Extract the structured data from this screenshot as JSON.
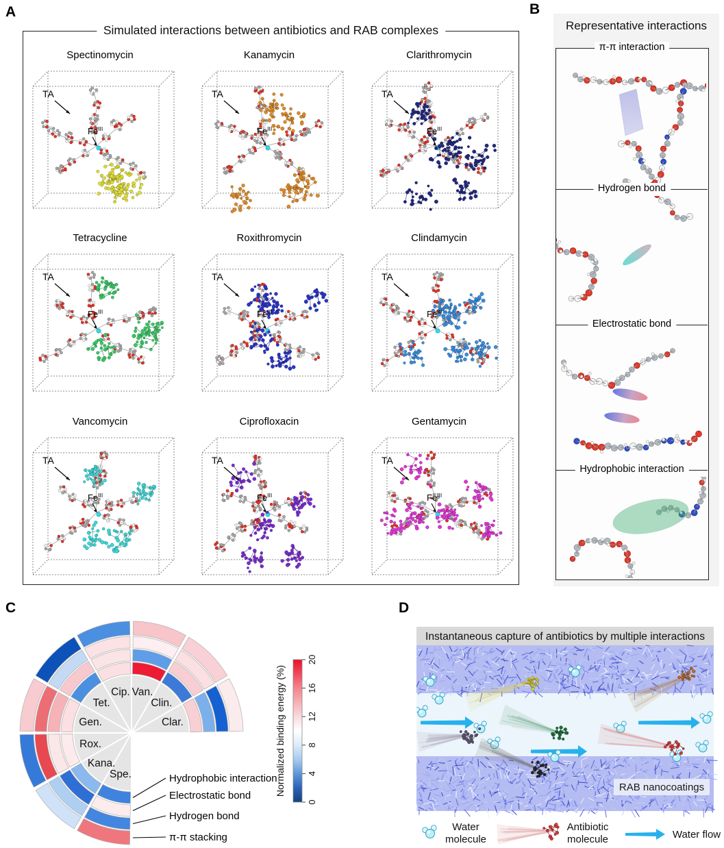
{
  "figure": {
    "panel_a": {
      "label": "A",
      "title": "Simulated interactions between antibiotics and RAB complexes",
      "ta_label": "TA",
      "fe_label": "Fe",
      "fe_superscript": "III",
      "subpanels": [
        {
          "name": "Spectinomycin",
          "color": "#e0de38"
        },
        {
          "name": "Kanamycin",
          "color": "#de8d2b"
        },
        {
          "name": "Clarithromycin",
          "color": "#232a80"
        },
        {
          "name": "Tetracycline",
          "color": "#3bc968"
        },
        {
          "name": "Roxithromycin",
          "color": "#2c35c8"
        },
        {
          "name": "Clindamycin",
          "color": "#3b8ede"
        },
        {
          "name": "Vancomycin",
          "color": "#3fd8d8"
        },
        {
          "name": "Ciprofloxacin",
          "color": "#7a2fd0"
        },
        {
          "name": "Gentamycin",
          "color": "#e039d6"
        }
      ]
    },
    "panel_b": {
      "label": "B",
      "title": "Representative interactions",
      "sections": [
        {
          "name": "π-π interaction",
          "highlight": "purple-slab"
        },
        {
          "name": "Hydrogen bond",
          "highlight": "teal-ellipse"
        },
        {
          "name": "Electrostatic bond",
          "highlight": "red-blue-ellipses"
        },
        {
          "name": "Hydrophobic interaction",
          "highlight": "green-blob"
        }
      ]
    },
    "panel_c": {
      "label": "C",
      "chart_data": {
        "type": "sunburst-heatmap",
        "rings": [
          "Hydrophobic interaction",
          "Electrostatic bond",
          "Hydrogen bond",
          "π-π stacking"
        ],
        "colorbar": {
          "title": "Normalized binding energy (%)",
          "ticks": [
            0,
            4,
            8,
            12,
            16,
            20
          ],
          "min": 0,
          "max": 20,
          "top_color": "#ea1128",
          "mid_color": "#ffffff",
          "bottom_color": "#14407f"
        },
        "wedges": [
          {
            "label": "Spe.",
            "start": -180,
            "end": -150,
            "values": [
              8,
              13,
              8,
              18
            ],
            "colors": [
              "#3f83de",
              "#fcecee",
              "#4286df",
              "#f0767e"
            ]
          },
          {
            "label": "Kana.",
            "start": -150,
            "end": -120,
            "values": [
              9,
              6,
              10,
              11
            ],
            "colors": [
              "#8ab9ee",
              "#2e6fd6",
              "#aecff2",
              "#cfe2f7"
            ]
          },
          {
            "label": "Rox.",
            "start": -120,
            "end": -90,
            "values": [
              13,
              13,
              19,
              7
            ],
            "colors": [
              "#fceaec",
              "#fbe6e8",
              "#e84850",
              "#3579d9"
            ]
          },
          {
            "label": "Gen.",
            "start": -90,
            "end": -60,
            "values": [
              13,
              15,
              17,
              14
            ],
            "colors": [
              "#fbdfe2",
              "#f5b3b8",
              "#ed6d75",
              "#f8cbd0"
            ]
          },
          {
            "label": "Tet.",
            "start": -60,
            "end": -30,
            "values": [
              9,
              14,
              10,
              3
            ],
            "colors": [
              "#4a8fe0",
              "#f7c9ce",
              "#c3d9f4",
              "#0d52b8"
            ]
          },
          {
            "label": "Cip.",
            "start": -30,
            "end": 0,
            "values": [
              13,
              13,
              13,
              8
            ],
            "colors": [
              "#fbe0e3",
              "#fbe4e6",
              "#fae2e5",
              "#4a8fe0"
            ]
          },
          {
            "label": "Van.",
            "start": 0,
            "end": 30,
            "values": [
              20,
              9,
              13,
              15
            ],
            "colors": [
              "#ed1b34",
              "#5f9de8",
              "#fdeff1",
              "#f7c5ca"
            ]
          },
          {
            "label": "Clin.",
            "start": 30,
            "end": 60,
            "values": [
              7,
              14,
              13,
              14
            ],
            "colors": [
              "#3d7ad8",
              "#f8ced2",
              "#fbdfe2",
              "#f8d0d5"
            ]
          },
          {
            "label": "Clar.",
            "start": 60,
            "end": 90,
            "values": [
              14,
              9,
              4,
              13
            ],
            "colors": [
              "#f8cfd4",
              "#7cb0ea",
              "#1661d1",
              "#fcebec"
            ]
          }
        ]
      }
    },
    "panel_d": {
      "label": "D",
      "title": "Instantaneous capture of antibiotics by multiple interactions",
      "coating_label": "RAB nanocoatings",
      "legend": [
        {
          "label_line1": "Water",
          "label_line2": "molecule"
        },
        {
          "label_line1": "Antibiotic",
          "label_line2": "molecule"
        },
        {
          "label_line1": "Water flow",
          "label_line2": ""
        }
      ],
      "accents": {
        "water_flow_cyan": "#27b1ec",
        "coating_blue": "#5a67dd",
        "channel_blue": "#ecf5fb",
        "title_bar_gray": "#d9d9d9"
      }
    }
  }
}
